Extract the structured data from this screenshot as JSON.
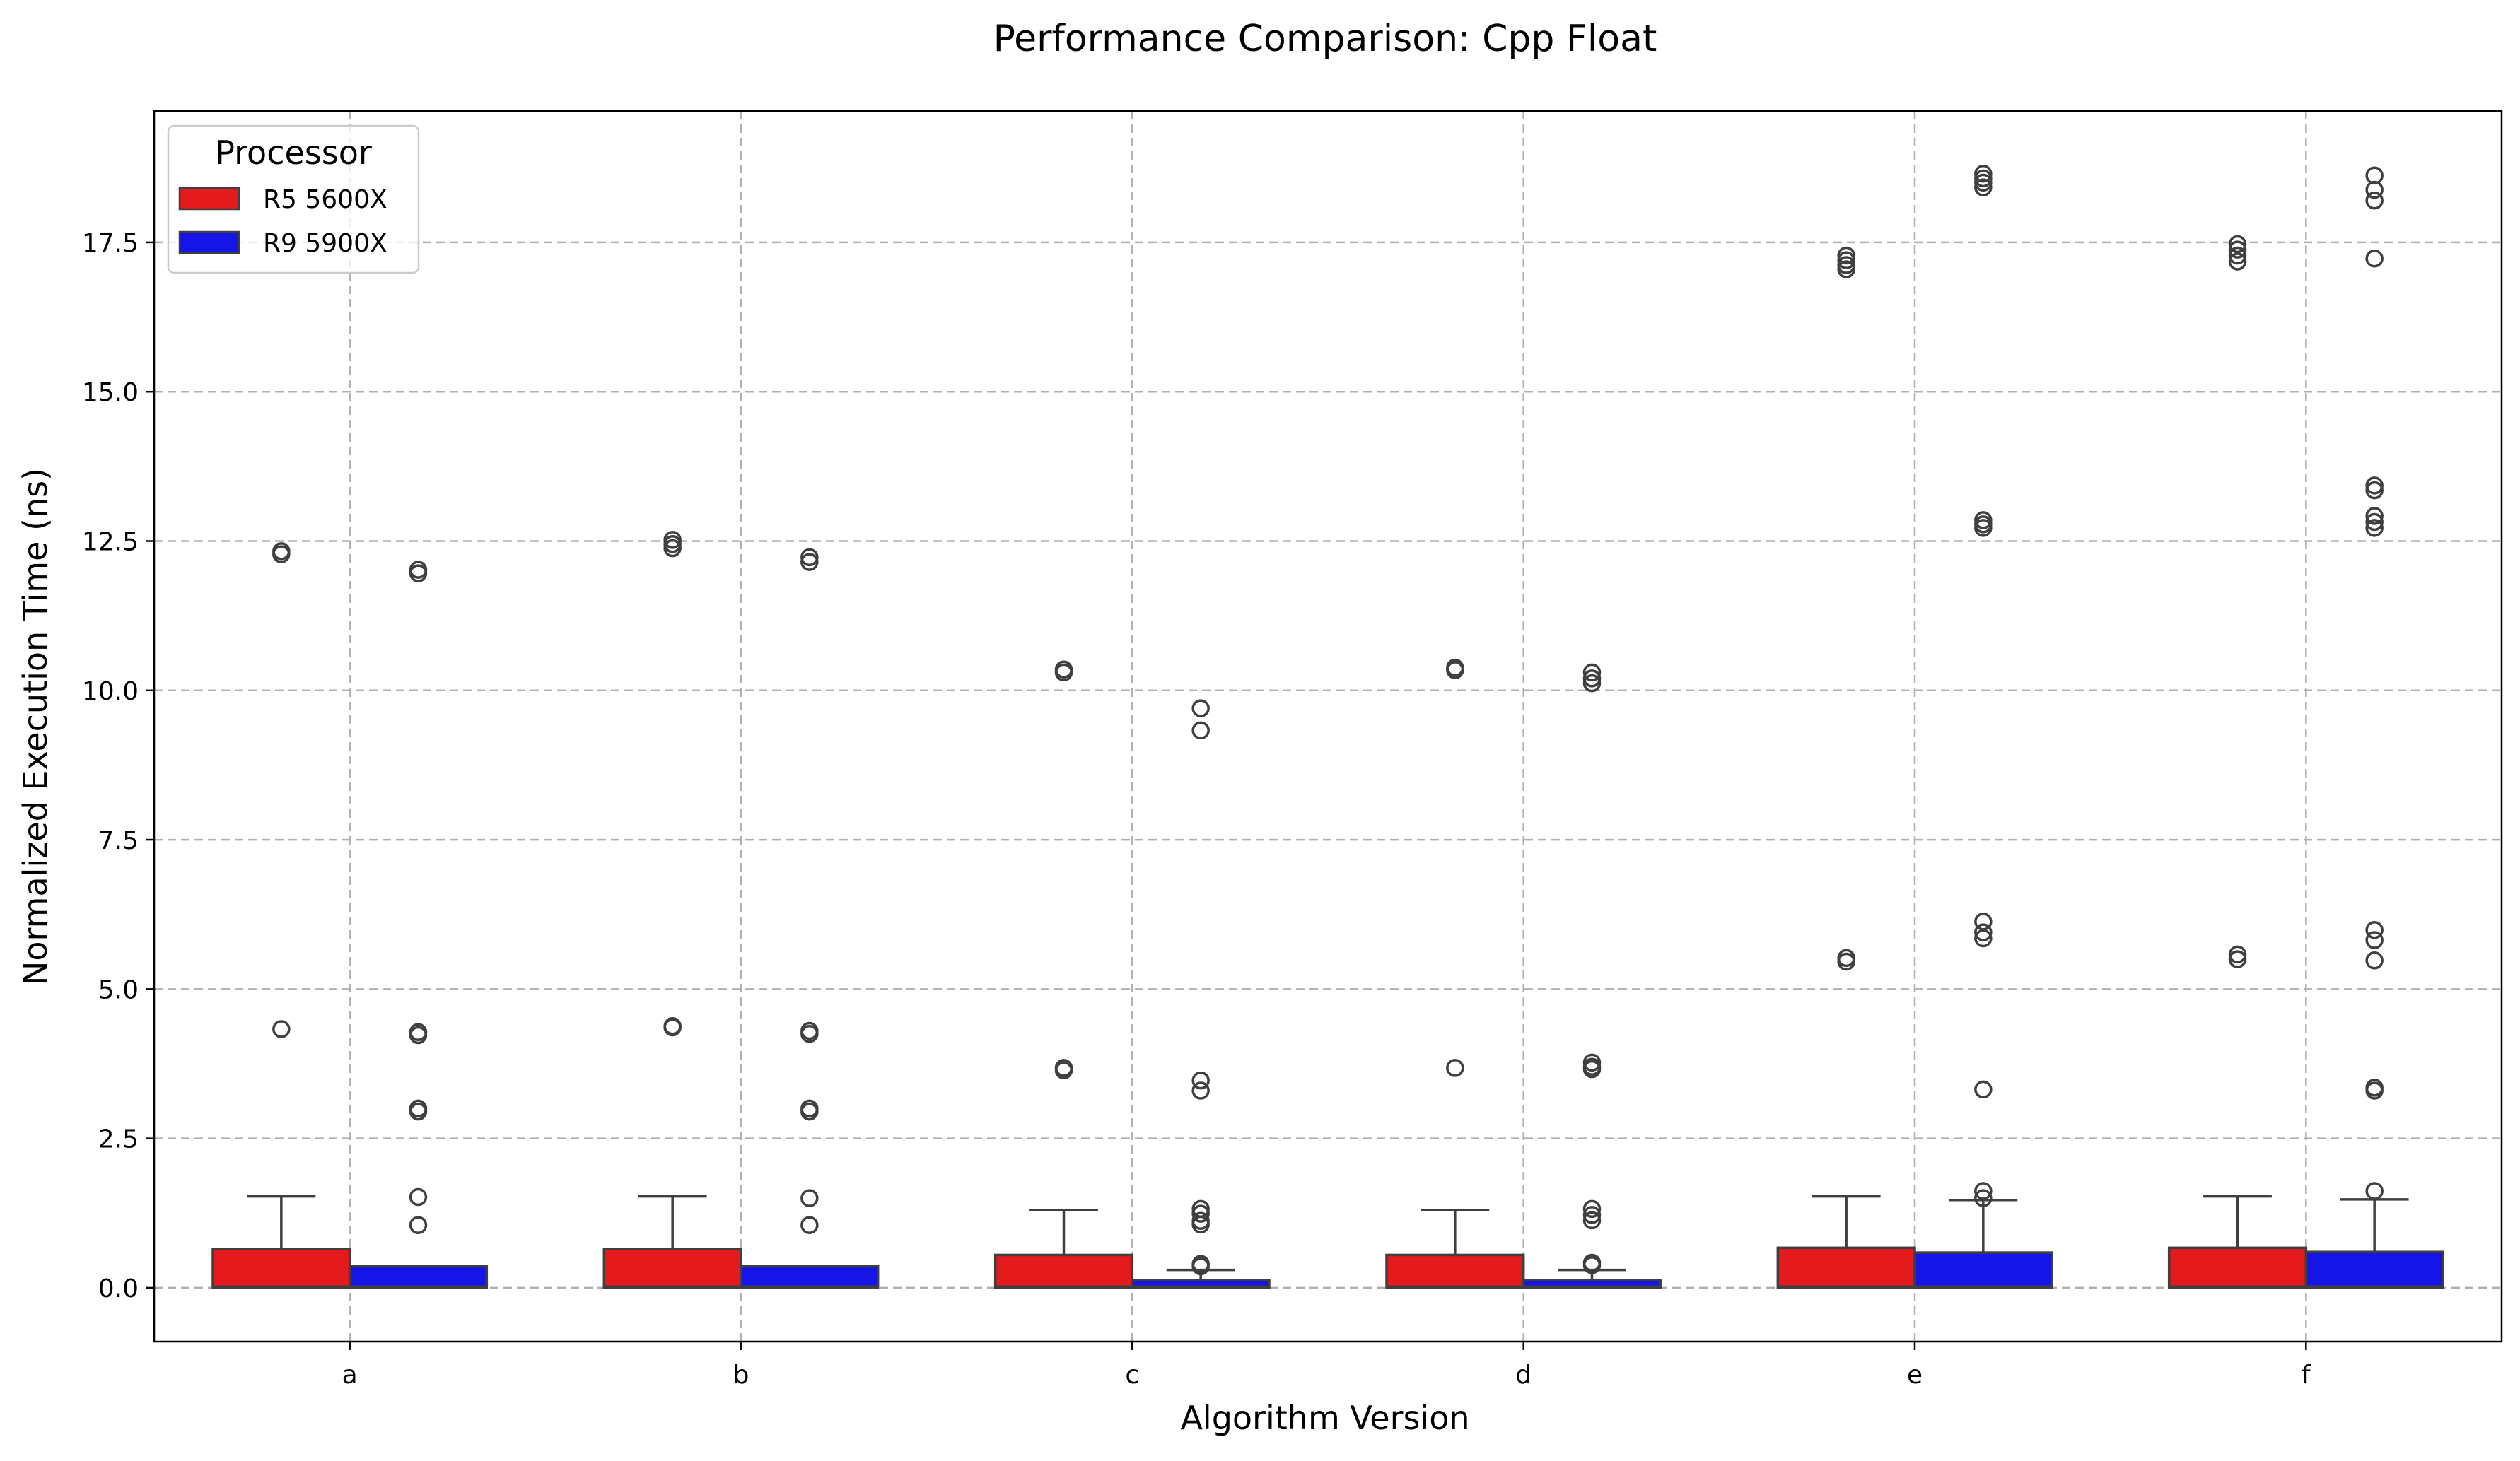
{
  "chart_data": {
    "type": "box",
    "title": "Performance Comparison: Cpp Float",
    "xlabel": "Algorithm Version",
    "ylabel": "Normalized Execution Time (ns)",
    "ylim": [
      -0.9,
      19.7
    ],
    "yticks": [
      0.0,
      2.5,
      5.0,
      7.5,
      10.0,
      12.5,
      15.0,
      17.5
    ],
    "ytick_labels": [
      "0.0",
      "2.5",
      "5.0",
      "7.5",
      "10.0",
      "12.5",
      "15.0",
      "17.5"
    ],
    "grid": true,
    "categories": [
      "a",
      "b",
      "c",
      "d",
      "e",
      "f"
    ],
    "legend": {
      "title": "Processor",
      "position": "top-left"
    },
    "series": [
      {
        "name": "R5 5600X",
        "color": "#e41a1c",
        "boxes": [
          {
            "whislo": 0.0,
            "q1": 0.0,
            "med": 0.02,
            "q3": 0.65,
            "whishi": 1.53,
            "fliers": [
              12.33,
              12.28,
              4.33
            ]
          },
          {
            "whislo": 0.0,
            "q1": 0.0,
            "med": 0.02,
            "q3": 0.65,
            "whishi": 1.53,
            "fliers": [
              12.52,
              12.45,
              12.38,
              4.38,
              4.36
            ]
          },
          {
            "whislo": 0.0,
            "q1": 0.0,
            "med": 0.02,
            "q3": 0.55,
            "whishi": 1.3,
            "fliers": [
              10.35,
              10.3,
              3.68,
              3.64
            ]
          },
          {
            "whislo": 0.0,
            "q1": 0.0,
            "med": 0.02,
            "q3": 0.55,
            "whishi": 1.3,
            "fliers": [
              10.38,
              10.34,
              3.68
            ]
          },
          {
            "whislo": 0.0,
            "q1": 0.0,
            "med": 0.02,
            "q3": 0.67,
            "whishi": 1.53,
            "fliers": [
              17.28,
              17.2,
              17.12,
              17.05,
              5.52,
              5.46
            ]
          },
          {
            "whislo": 0.0,
            "q1": 0.0,
            "med": 0.02,
            "q3": 0.67,
            "whishi": 1.53,
            "fliers": [
              17.47,
              17.38,
              17.28,
              17.18,
              5.58,
              5.5
            ]
          }
        ]
      },
      {
        "name": "R9 5900X",
        "color": "#1515e8",
        "boxes": [
          {
            "whislo": 0.0,
            "q1": 0.0,
            "med": 0.02,
            "q3": 0.36,
            "whishi": 0.36,
            "fliers": [
              12.02,
              11.96,
              4.28,
              4.23,
              3.0,
              2.95,
              1.52,
              1.05
            ]
          },
          {
            "whislo": 0.0,
            "q1": 0.0,
            "med": 0.02,
            "q3": 0.36,
            "whishi": 0.36,
            "fliers": [
              12.23,
              12.15,
              4.3,
              4.25,
              3.0,
              2.95,
              1.5,
              1.05
            ]
          },
          {
            "whislo": 0.0,
            "q1": 0.0,
            "med": 0.02,
            "q3": 0.13,
            "whishi": 0.3,
            "fliers": [
              9.7,
              9.33,
              3.47,
              3.3,
              1.32,
              1.24,
              1.12,
              1.06,
              0.4,
              0.36
            ]
          },
          {
            "whislo": 0.0,
            "q1": 0.0,
            "med": 0.02,
            "q3": 0.13,
            "whishi": 0.3,
            "fliers": [
              10.3,
              10.2,
              10.12,
              3.77,
              3.7,
              3.66,
              1.32,
              1.22,
              1.13,
              0.42,
              0.38
            ]
          },
          {
            "whislo": 0.0,
            "q1": 0.0,
            "med": 0.02,
            "q3": 0.59,
            "whishi": 1.47,
            "fliers": [
              18.65,
              18.57,
              18.5,
              18.42,
              12.85,
              12.78,
              12.72,
              6.13,
              5.95,
              5.85,
              3.32,
              1.62,
              1.5
            ]
          },
          {
            "whislo": 0.0,
            "q1": 0.0,
            "med": 0.02,
            "q3": 0.6,
            "whishi": 1.48,
            "fliers": [
              18.62,
              18.38,
              18.2,
              17.23,
              13.43,
              13.35,
              12.92,
              12.82,
              12.72,
              5.99,
              5.82,
              5.48,
              3.35,
              3.3,
              1.62
            ]
          }
        ]
      }
    ]
  }
}
